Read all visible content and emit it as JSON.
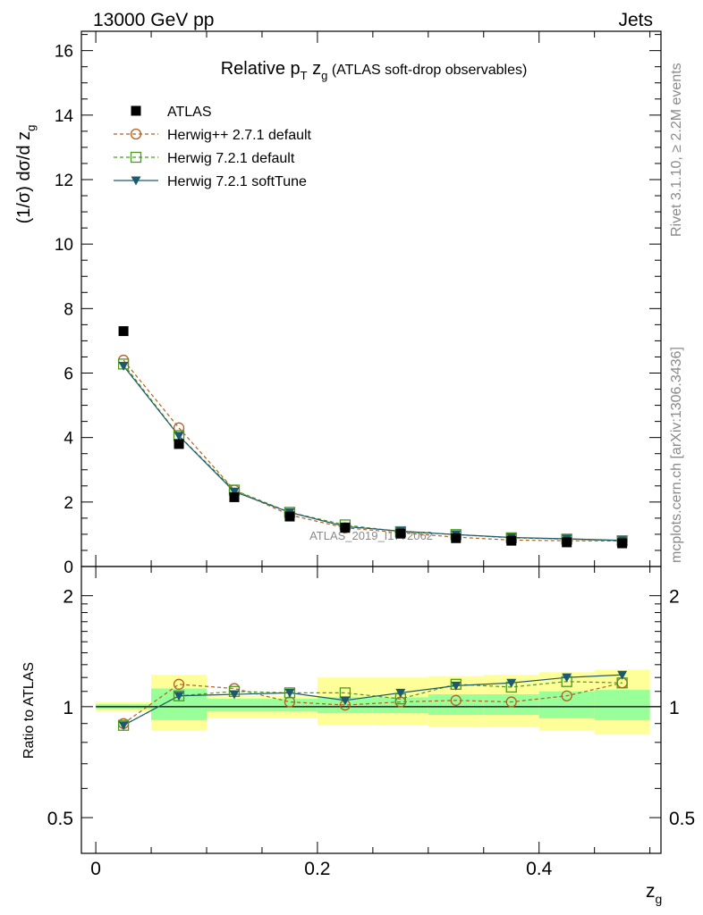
{
  "header": {
    "energy": "13000 GeV pp",
    "category": "Jets"
  },
  "side_labels": {
    "rivet": "Rivet 3.1.10, ≥ 2.2M events",
    "mcplots": "mcplots.cern.ch [arXiv:1306.3436]"
  },
  "chart_data": [
    {
      "type": "scatter",
      "title_parts": {
        "pre": "Relative p",
        "sub1": "T",
        "mid": " z",
        "sub2": "g",
        "post": " (ATLAS soft-drop observables)"
      },
      "ylabel": "(1/σ) dσ/d z",
      "ylabel_sub": "g",
      "watermark": "ATLAS_2019_I1772062",
      "xlim": [
        -0.013,
        0.51
      ],
      "ylim": [
        0,
        16.6
      ],
      "y_ticks": [
        0,
        2,
        4,
        6,
        8,
        10,
        12,
        14,
        16
      ],
      "y_tick_labels": [
        "0",
        "2",
        "4",
        "6",
        "8",
        "10",
        "12",
        "14",
        "16"
      ],
      "x": [
        0.025,
        0.075,
        0.125,
        0.175,
        0.225,
        0.275,
        0.325,
        0.375,
        0.425,
        0.475
      ],
      "legend": {
        "placement": "top-left"
      },
      "series": [
        {
          "name": "ATLAS",
          "style": "data",
          "color": "#000000",
          "values": [
            7.3,
            3.8,
            2.15,
            1.55,
            1.2,
            1.02,
            0.88,
            0.8,
            0.75,
            0.72
          ]
        },
        {
          "name": "Herwig++ 2.7.1 default",
          "style": "circle-dashed",
          "color": "#b45f1e",
          "values": [
            6.4,
            4.3,
            2.37,
            1.6,
            1.2,
            1.05,
            0.91,
            0.82,
            0.8,
            0.79
          ]
        },
        {
          "name": "Herwig 7.2.1 default",
          "style": "square-dashed",
          "color": "#4a9a1e",
          "values": [
            6.28,
            4.06,
            2.37,
            1.68,
            1.29,
            1.08,
            0.99,
            0.89,
            0.85,
            0.8
          ]
        },
        {
          "name": "Herwig 7.2.1 softTune",
          "style": "triangle-solid",
          "color": "#1e5a6e",
          "values": [
            6.22,
            4.05,
            2.32,
            1.68,
            1.24,
            1.1,
            0.99,
            0.9,
            0.86,
            0.81
          ]
        }
      ]
    },
    {
      "type": "scatter",
      "ylabel": "Ratio to ATLAS",
      "xlabel": "z",
      "xlabel_sub": "g",
      "scale": "log",
      "xlim": [
        -0.013,
        0.51
      ],
      "ylim": [
        0.4,
        2.4
      ],
      "y_ticks": [
        0.5,
        1,
        2
      ],
      "y_tick_labels": [
        "0.5",
        "1",
        "2"
      ],
      "x_ticks": [
        0,
        0.2,
        0.4
      ],
      "x_tick_labels": [
        "0",
        "0.2",
        "0.4"
      ],
      "bin_edges": [
        0,
        0.05,
        0.1,
        0.15,
        0.2,
        0.25,
        0.3,
        0.35,
        0.4,
        0.45,
        0.5
      ],
      "band_yellow": [
        [
          0.97,
          1.03
        ],
        [
          0.86,
          1.22
        ],
        [
          0.93,
          1.07
        ],
        [
          0.93,
          1.07
        ],
        [
          0.89,
          1.2
        ],
        [
          0.89,
          1.2
        ],
        [
          0.88,
          1.21
        ],
        [
          0.88,
          1.22
        ],
        [
          0.86,
          1.24
        ],
        [
          0.84,
          1.26
        ]
      ],
      "band_green": [
        [
          0.985,
          1.015
        ],
        [
          0.92,
          1.12
        ],
        [
          0.97,
          1.05
        ],
        [
          0.97,
          1.05
        ],
        [
          0.96,
          1.06
        ],
        [
          0.96,
          1.06
        ],
        [
          0.95,
          1.08
        ],
        [
          0.95,
          1.08
        ],
        [
          0.93,
          1.1
        ],
        [
          0.92,
          1.11
        ]
      ],
      "x": [
        0.025,
        0.075,
        0.125,
        0.175,
        0.225,
        0.275,
        0.325,
        0.375,
        0.425,
        0.475
      ],
      "series": [
        {
          "name": "Herwig++ 2.7.1 default",
          "style": "circle-dashed",
          "color": "#b45f1e",
          "values": [
            0.9,
            1.15,
            1.12,
            1.03,
            1.01,
            1.03,
            1.04,
            1.03,
            1.07,
            1.16
          ]
        },
        {
          "name": "Herwig 7.2.1 default",
          "style": "square-dashed",
          "color": "#4a9a1e",
          "values": [
            0.89,
            1.07,
            1.1,
            1.09,
            1.09,
            1.05,
            1.15,
            1.13,
            1.17,
            1.16
          ]
        },
        {
          "name": "Herwig 7.2.1 softTune",
          "style": "triangle-solid",
          "color": "#1e5a6e",
          "values": [
            0.89,
            1.07,
            1.08,
            1.09,
            1.04,
            1.09,
            1.14,
            1.16,
            1.2,
            1.22
          ]
        }
      ]
    }
  ]
}
